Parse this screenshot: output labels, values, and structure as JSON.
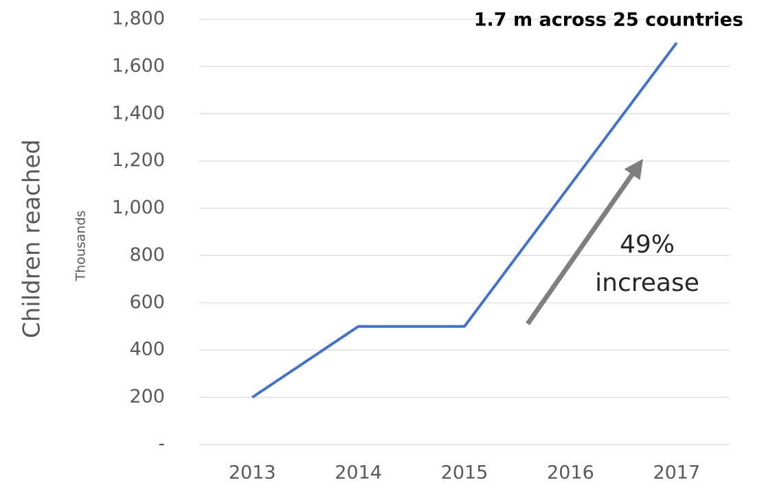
{
  "chart_data": {
    "type": "line",
    "title": "1.7 m across 25 countries",
    "y_label": "Children reached",
    "y_units": "Thousands",
    "annotation": [
      "49%",
      "increase"
    ],
    "categories": [
      "2013",
      "2014",
      "2015",
      "2016",
      "2017"
    ],
    "series": [
      {
        "name": "Children reached",
        "color": "#4472c4",
        "values": [
          200,
          500,
          500,
          1100,
          1700
        ]
      }
    ],
    "ylim": [
      0,
      1800
    ],
    "yticks": [
      {
        "value": 0,
        "label": "-"
      },
      200,
      400,
      600,
      800,
      {
        "value": 1000,
        "label": "1,000"
      },
      {
        "value": 1200,
        "label": "1,200"
      },
      {
        "value": 1400,
        "label": "1,400"
      },
      {
        "value": 1600,
        "label": "1,600"
      },
      {
        "value": 1800,
        "label": "1,800"
      }
    ],
    "grid": true
  }
}
